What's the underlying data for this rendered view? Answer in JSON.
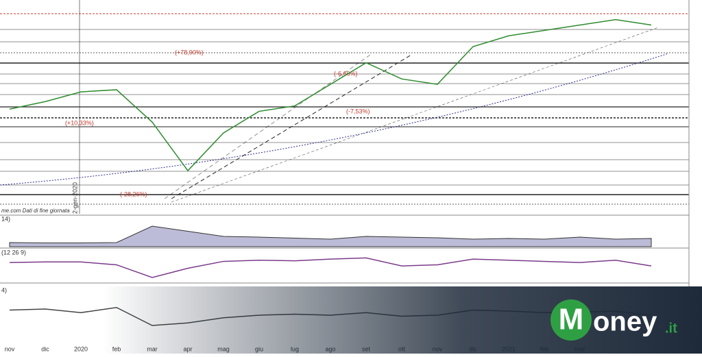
{
  "chart_data": [
    {
      "type": "line",
      "categories": [
        "nov",
        "dic",
        "2020",
        "feb",
        "mar",
        "apr",
        "mag",
        "giu",
        "lug",
        "ago",
        "set",
        "ott",
        "nov",
        "dic",
        "2021",
        "feb",
        "mar",
        null,
        null
      ],
      "values": [
        3070,
        3140,
        3230,
        3250,
        2950,
        2500,
        2850,
        3050,
        3100,
        3300,
        3500,
        3350,
        3300,
        3650,
        3750,
        3800,
        3850,
        3900,
        3850
      ],
      "color": "#2e8b2e",
      "ylim": [
        2100,
        4050
      ],
      "annotations": [
        "(+78,90%)",
        "(-28,26%)",
        "(+10,33%)",
        "(-6,66%)",
        "(-7,53%)",
        "2-gen-2020"
      ],
      "source": "me.com Dati di fine giornata"
    },
    {
      "type": "area",
      "label": "14)",
      "values": [
        12,
        11,
        11,
        12,
        60,
        45,
        30,
        28,
        25,
        22,
        30,
        28,
        26,
        22,
        24,
        22,
        28,
        22,
        24
      ],
      "color": "#6a6aa8",
      "ylim": [
        0,
        80
      ]
    },
    {
      "type": "line",
      "label": "(12 26 9)",
      "values": [
        10,
        15,
        15,
        -10,
        -120,
        -40,
        20,
        30,
        25,
        40,
        50,
        -20,
        -10,
        40,
        30,
        20,
        10,
        30,
        -20
      ],
      "color": "#7a3a8a",
      "ylim": [
        -150,
        100
      ]
    },
    {
      "type": "line",
      "label": "4)",
      "values": [
        70,
        72,
        65,
        75,
        40,
        45,
        55,
        60,
        62,
        60,
        65,
        58,
        60,
        70,
        68,
        65,
        66,
        68,
        60
      ],
      "color": "#444",
      "ylim": [
        0,
        100
      ]
    }
  ],
  "logo": {
    "initial": "M",
    "name": "oney",
    "suffix": ".it"
  }
}
